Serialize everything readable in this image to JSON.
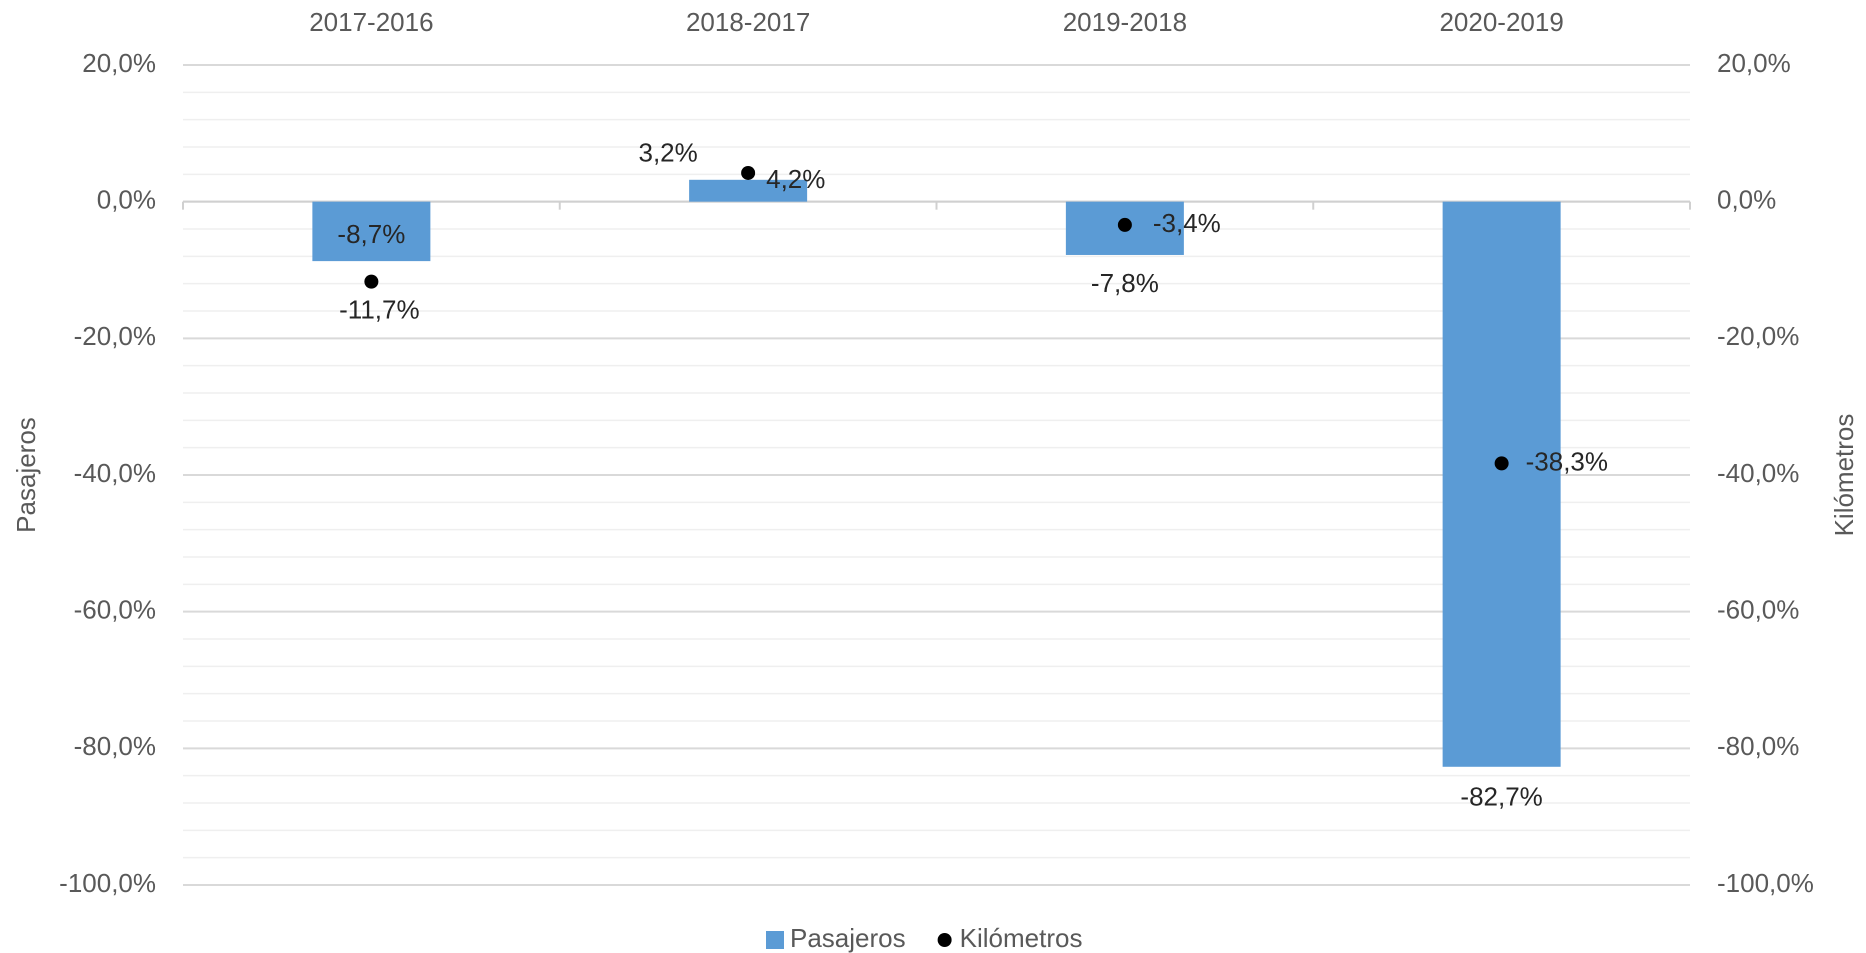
{
  "chart_data": {
    "type": "bar",
    "categories": [
      "2017-2016",
      "2018-2017",
      "2019-2018",
      "2020-2019"
    ],
    "series": [
      {
        "name": "Pasajeros",
        "type": "bar",
        "color": "#5b9bd5",
        "values": [
          -8.7,
          3.2,
          -7.8,
          -82.7
        ],
        "value_labels": [
          "-8,7%",
          "3,2%",
          "-7,8%",
          "-82,7%"
        ]
      },
      {
        "name": "Kilómetros",
        "type": "scatter",
        "axis": "y2",
        "color": "#000000",
        "values": [
          -11.7,
          4.2,
          -3.4,
          -38.3
        ],
        "value_labels": [
          "-11,7%",
          "4,2%",
          "-3,4%",
          "-38,3%"
        ]
      }
    ],
    "ylabel": "Pasajeros",
    "y2label": "Kilómetros",
    "ylim": [
      -100,
      20
    ],
    "yticks": [
      {
        "value": 20,
        "label": "20,0%"
      },
      {
        "value": 0,
        "label": "0,0%"
      },
      {
        "value": -20,
        "label": "-20,0%"
      },
      {
        "value": -40,
        "label": "-40,0%"
      },
      {
        "value": -60,
        "label": "-60,0%"
      },
      {
        "value": -80,
        "label": "-80,0%"
      },
      {
        "value": -100,
        "label": "-100,0%"
      }
    ],
    "y2lim": [
      -100,
      20
    ],
    "y2ticks": [
      {
        "value": 20,
        "label": "20,0%"
      },
      {
        "value": 0,
        "label": "0,0%"
      },
      {
        "value": -20,
        "label": "-20,0%"
      },
      {
        "value": -40,
        "label": "-40,0%"
      },
      {
        "value": -60,
        "label": "-60,0%"
      },
      {
        "value": -80,
        "label": "-80,0%"
      },
      {
        "value": -100,
        "label": "-100,0%"
      }
    ],
    "grid": true,
    "legend": "bottom"
  }
}
